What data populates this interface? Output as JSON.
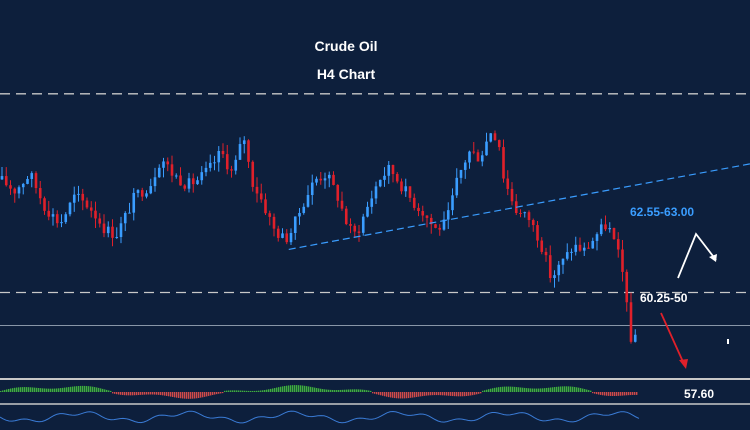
{
  "chart_data": {
    "type": "candlestick",
    "title": "Crude Oil",
    "subtitle": "H4 Chart",
    "colors": {
      "background": "#0d1f3c",
      "bull": "#3a9dff",
      "bear": "#e0202a",
      "level_line": "#c8c8c8",
      "trendline": "#3a9dff",
      "arrow_up": "#ffffff",
      "arrow_down": "#e0202a",
      "macd_pos": "#3fae3f",
      "macd_neg": "#d04a4a",
      "oscillator": "#3a7bd5"
    },
    "grid": false,
    "levels": [
      {
        "id": "resistance",
        "value": 63.95
      },
      {
        "id": "support",
        "value": 60.35
      },
      {
        "id": "current",
        "value": 59.75
      }
    ],
    "annotations": [
      {
        "id": "resistance-target",
        "text": "62.55-63.00"
      },
      {
        "id": "support-zone",
        "text": "60.25-50"
      },
      {
        "id": "downside-target",
        "text": "57.60"
      }
    ],
    "trendline": {
      "from": [
        0.385,
        61.13
      ],
      "to": [
        1.0,
        62.68
      ]
    },
    "path": [
      [
        0.0,
        62.4
      ],
      [
        0.02,
        62.2
      ],
      [
        0.04,
        62.5
      ],
      [
        0.06,
        61.9
      ],
      [
        0.08,
        61.6
      ],
      [
        0.1,
        62.1
      ],
      [
        0.12,
        61.9
      ],
      [
        0.14,
        61.5
      ],
      [
        0.155,
        61.4
      ],
      [
        0.17,
        61.8
      ],
      [
        0.18,
        62.1
      ],
      [
        0.2,
        62.3
      ],
      [
        0.215,
        62.8
      ],
      [
        0.23,
        62.5
      ],
      [
        0.25,
        62.3
      ],
      [
        0.265,
        62.4
      ],
      [
        0.28,
        62.6
      ],
      [
        0.295,
        62.9
      ],
      [
        0.31,
        62.5
      ],
      [
        0.325,
        63.2
      ],
      [
        0.335,
        62.4
      ],
      [
        0.35,
        62.0
      ],
      [
        0.365,
        61.5
      ],
      [
        0.38,
        61.3
      ],
      [
        0.39,
        61.5
      ],
      [
        0.405,
        62.0
      ],
      [
        0.42,
        62.4
      ],
      [
        0.435,
        62.5
      ],
      [
        0.45,
        62.1
      ],
      [
        0.465,
        61.5
      ],
      [
        0.475,
        61.4
      ],
      [
        0.49,
        61.9
      ],
      [
        0.505,
        62.4
      ],
      [
        0.52,
        62.6
      ],
      [
        0.535,
        62.3
      ],
      [
        0.55,
        62.0
      ],
      [
        0.565,
        61.8
      ],
      [
        0.58,
        61.5
      ],
      [
        0.595,
        61.6
      ],
      [
        0.61,
        62.4
      ],
      [
        0.625,
        62.9
      ],
      [
        0.64,
        62.8
      ],
      [
        0.655,
        63.3
      ],
      [
        0.665,
        63.1
      ],
      [
        0.672,
        62.4
      ],
      [
        0.69,
        61.8
      ],
      [
        0.705,
        61.7
      ],
      [
        0.72,
        61.3
      ],
      [
        0.735,
        60.6
      ],
      [
        0.75,
        60.9
      ],
      [
        0.765,
        61.2
      ],
      [
        0.78,
        61.1
      ],
      [
        0.795,
        61.4
      ],
      [
        0.81,
        61.6
      ],
      [
        0.825,
        61.0
      ],
      [
        0.835,
        60.4
      ],
      [
        0.84,
        59.3
      ],
      [
        0.85,
        59.7
      ]
    ]
  }
}
